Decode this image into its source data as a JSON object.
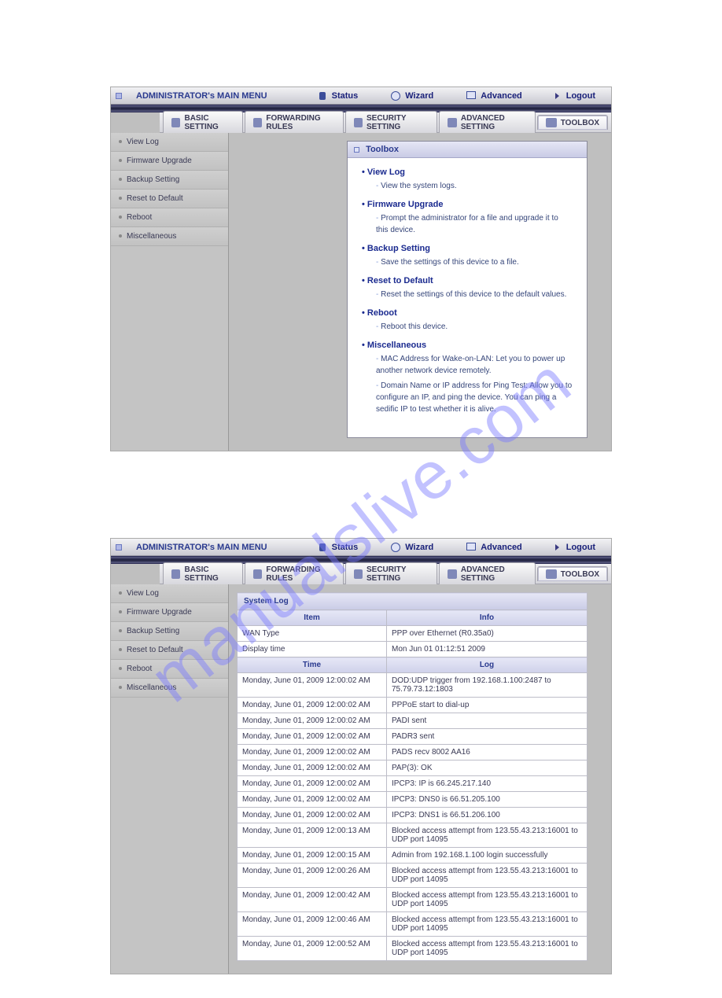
{
  "watermark": "manualslive.com",
  "colors": {
    "brand_text": "#2a3a8f",
    "dark_bar_top": "#5d5f86",
    "dark_bar_mid": "#1c1d3a",
    "panel_bg": "#bfbfbf",
    "sidebar_bg": "#c4c4c4",
    "watermark_color": "#7a7aff"
  },
  "header": {
    "main_title": "ADMINISTRATOR's MAIN MENU",
    "links": {
      "status": "Status",
      "wizard": "Wizard",
      "advanced": "Advanced",
      "logout": "Logout"
    }
  },
  "tabs": {
    "basic": "BASIC SETTING",
    "forwarding": "FORWARDING RULES",
    "security": "SECURITY SETTING",
    "advanced": "ADVANCED SETTING",
    "toolbox": "TOOLBOX"
  },
  "sidebar": {
    "items": [
      "View Log",
      "Firmware Upgrade",
      "Backup Setting",
      "Reset to Default",
      "Reboot",
      "Miscellaneous"
    ]
  },
  "toolbox": {
    "title": "Toolbox",
    "items": [
      {
        "title": "View Log",
        "descs": [
          "View the system logs."
        ]
      },
      {
        "title": "Firmware Upgrade",
        "descs": [
          "Prompt the administrator for a file and upgrade it to this device."
        ]
      },
      {
        "title": "Backup Setting",
        "descs": [
          "Save the settings of this device to a file."
        ]
      },
      {
        "title": "Reset to Default",
        "descs": [
          "Reset the settings of this device to the default values."
        ]
      },
      {
        "title": "Reboot",
        "descs": [
          "Reboot this device."
        ]
      },
      {
        "title": "Miscellaneous",
        "descs": [
          "MAC Address for Wake-on-LAN: Let you to power up another network device remotely.",
          "Domain Name or IP address for Ping Test: Allow you to configure an IP, and ping the device. You can ping a sedific IP to test whether it is alive."
        ]
      }
    ]
  },
  "syslog": {
    "title": "System Log",
    "header_item": "Item",
    "header_info": "Info",
    "header_time": "Time",
    "header_log": "Log",
    "info_rows": [
      {
        "item": "WAN Type",
        "info": "PPP over Ethernet (R0.35a0)"
      },
      {
        "item": "Display time",
        "info": "Mon Jun 01 01:12:51 2009"
      }
    ],
    "log_rows": [
      {
        "time": "Monday, June 01, 2009 12:00:02 AM",
        "log": "DOD:UDP trigger from 192.168.1.100:2487 to 75.79.73.12:1803"
      },
      {
        "time": "Monday, June 01, 2009 12:00:02 AM",
        "log": "PPPoE start to dial-up"
      },
      {
        "time": "Monday, June 01, 2009 12:00:02 AM",
        "log": "PADI sent"
      },
      {
        "time": "Monday, June 01, 2009 12:00:02 AM",
        "log": "PADR3 sent"
      },
      {
        "time": "Monday, June 01, 2009 12:00:02 AM",
        "log": "PADS recv 8002 AA16"
      },
      {
        "time": "Monday, June 01, 2009 12:00:02 AM",
        "log": "PAP(3): OK"
      },
      {
        "time": "Monday, June 01, 2009 12:00:02 AM",
        "log": "IPCP3: IP is 66.245.217.140"
      },
      {
        "time": "Monday, June 01, 2009 12:00:02 AM",
        "log": "IPCP3: DNS0 is 66.51.205.100"
      },
      {
        "time": "Monday, June 01, 2009 12:00:02 AM",
        "log": "IPCP3: DNS1 is 66.51.206.100"
      },
      {
        "time": "Monday, June 01, 2009 12:00:13 AM",
        "log": "Blocked access attempt from 123.55.43.213:16001 to UDP port 14095"
      },
      {
        "time": "Monday, June 01, 2009 12:00:15 AM",
        "log": "Admin from 192.168.1.100 login successfully"
      },
      {
        "time": "Monday, June 01, 2009 12:00:26 AM",
        "log": "Blocked access attempt from 123.55.43.213:16001 to UDP port 14095"
      },
      {
        "time": "Monday, June 01, 2009 12:00:42 AM",
        "log": "Blocked access attempt from 123.55.43.213:16001 to UDP port 14095"
      },
      {
        "time": "Monday, June 01, 2009 12:00:46 AM",
        "log": "Blocked access attempt from 123.55.43.213:16001 to UDP port 14095"
      },
      {
        "time": "Monday, June 01, 2009 12:00:52 AM",
        "log": "Blocked access attempt from 123.55.43.213:16001 to UDP port 14095"
      }
    ]
  }
}
